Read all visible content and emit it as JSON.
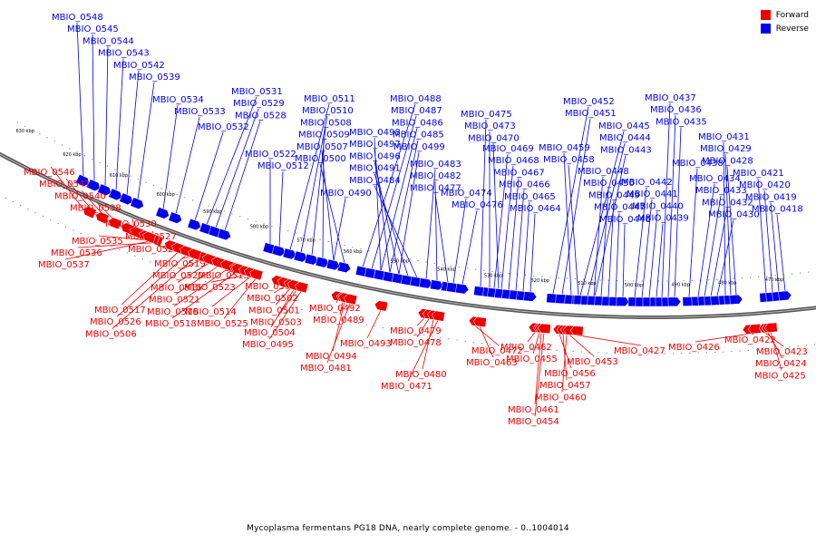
{
  "legend": {
    "forward_label": "Forward",
    "reverse_label": "Reverse",
    "forward_color": "#ee0000",
    "reverse_color": "#0000ee"
  },
  "caption": "Mycoplasma fermentans PG18 DNA, nearly complete genome. - 0..1004014",
  "scale_ticks_kbp": [
    630,
    620,
    610,
    600,
    590,
    580,
    570,
    560,
    550,
    540,
    530,
    520,
    510,
    500,
    490,
    480,
    470
  ],
  "scale_unit": "kbp",
  "forward_genes": [
    "MBIO_0546",
    "MBIO_0541",
    "MBIO_0540",
    "MBIO_0538",
    "MBIO_0530",
    "MBIO_0535",
    "MBIO_0527",
    "MBIO_0536",
    "MBIO_0524",
    "MBIO_0537",
    "MBIO_0519",
    "MBIO_0520",
    "MBIO_0515",
    "MBIO_0521",
    "MBIO_0516",
    "MBIO_0518",
    "MBIO_0513",
    "MBIO_0523",
    "MBIO_0514",
    "MBIO_0525",
    "MBIO_0517",
    "MBIO_0526",
    "MBIO_0506",
    "MBIO_0505",
    "MBIO_0502",
    "MBIO_0501",
    "MBIO_0503",
    "MBIO_0504",
    "MBIO_0495",
    "MBIO_0492",
    "MBIO_0489",
    "MBIO_0493",
    "MBIO_0494",
    "MBIO_0481",
    "MBIO_0479",
    "MBIO_0478",
    "MBIO_0480",
    "MBIO_0471",
    "MBIO_0472",
    "MBIO_0463",
    "MBIO_0462",
    "MBIO_0455",
    "MBIO_0456",
    "MBIO_0457",
    "MBIO_0460",
    "MBIO_0461",
    "MBIO_0454",
    "MBIO_0453",
    "MBIO_0427",
    "MBIO_0426",
    "MBIO_0422",
    "MBIO_0423",
    "MBIO_0424",
    "MBIO_0425"
  ],
  "reverse_genes": [
    "MBIO_0548",
    "MBIO_0545",
    "MBIO_0544",
    "MBIO_0543",
    "MBIO_0542",
    "MBIO_0539",
    "MBIO_0534",
    "MBIO_0533",
    "MBIO_0532",
    "MBIO_0531",
    "MBIO_0529",
    "MBIO_0528",
    "MBIO_0522",
    "MBIO_0512",
    "MBIO_0511",
    "MBIO_0510",
    "MBIO_0508",
    "MBIO_0509",
    "MBIO_0507",
    "MBIO_0500",
    "MBIO_0490",
    "MBIO_0488",
    "MBIO_0487",
    "MBIO_0486",
    "MBIO_0485",
    "MBIO_0499",
    "MBIO_0498",
    "MBIO_0497",
    "MBIO_0496",
    "MBIO_0491",
    "MBIO_0484",
    "MBIO_0483",
    "MBIO_0482",
    "MBIO_0477",
    "MBIO_0474",
    "MBIO_0476",
    "MBIO_0475",
    "MBIO_0473",
    "MBIO_0470",
    "MBIO_0469",
    "MBIO_0468",
    "MBIO_0467",
    "MBIO_0466",
    "MBIO_0465",
    "MBIO_0464",
    "MBIO_0452",
    "MBIO_0451",
    "MBIO_0459",
    "MBIO_0458",
    "MBIO_0445",
    "MBIO_0444",
    "MBIO_0443",
    "MBIO_0448",
    "MBIO_0450",
    "MBIO_0449",
    "MBIO_0447",
    "MBIO_0446",
    "MBIO_0442",
    "MBIO_0441",
    "MBIO_0440",
    "MBIO_0439",
    "MBIO_0437",
    "MBIO_0436",
    "MBIO_0435",
    "MBIO_0438",
    "MBIO_0434",
    "MBIO_0433",
    "MBIO_0432",
    "MBIO_0430",
    "MBIO_0431",
    "MBIO_0429",
    "MBIO_0428",
    "MBIO_0421",
    "MBIO_0420",
    "MBIO_0419",
    "MBIO_0418"
  ]
}
